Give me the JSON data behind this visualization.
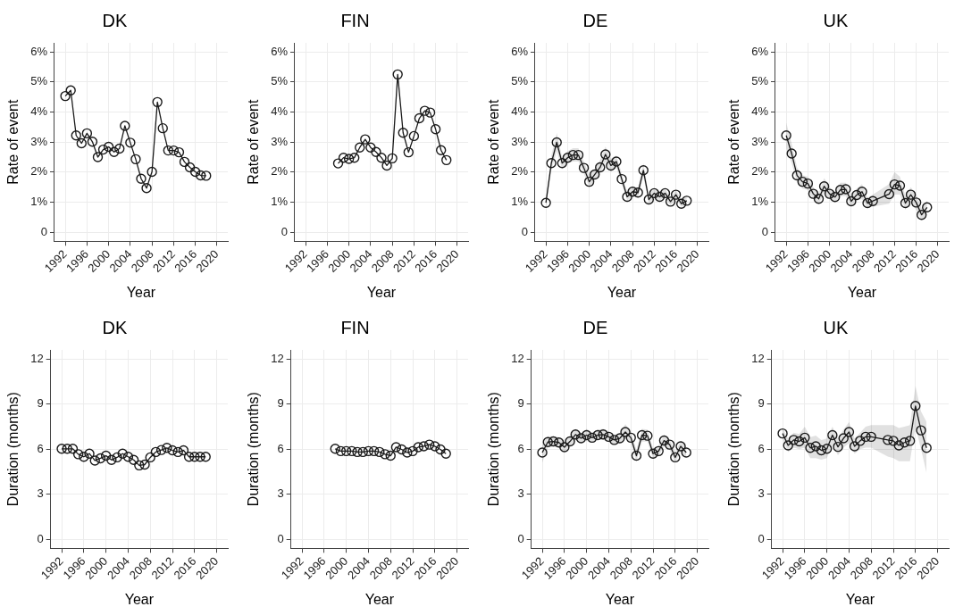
{
  "chart_data": [
    {
      "type": "line",
      "title": "DK",
      "xlabel": "Year",
      "ylabel": "Rate of event",
      "xlim": [
        1990,
        2022
      ],
      "xticks": [
        1992,
        1996,
        2000,
        2004,
        2008,
        2012,
        2016,
        2020
      ],
      "ylim": [
        -0.3,
        6.3
      ],
      "yticks": [
        0,
        {
          "value": 1,
          "label": "1%"
        },
        {
          "value": 2,
          "label": "2%"
        },
        {
          "value": 3,
          "label": "3%"
        },
        {
          "value": 4,
          "label": "4%"
        },
        {
          "value": 5,
          "label": "5%"
        },
        {
          "value": 6,
          "label": "6%"
        }
      ],
      "grid": true,
      "marker": "circle",
      "series": [
        {
          "color": "#1a1a1a",
          "x": [
            1992,
            1993,
            1994,
            1995,
            1996,
            1997,
            1998,
            1999,
            2000,
            2001,
            2002,
            2003,
            2004,
            2005,
            2006,
            2007,
            2008,
            2009,
            2010,
            2011,
            2012,
            2013,
            2014,
            2015,
            2016,
            2017,
            2018
          ],
          "values": [
            4.53,
            4.72,
            3.22,
            2.96,
            3.29,
            3.01,
            2.5,
            2.75,
            2.84,
            2.67,
            2.78,
            3.54,
            2.98,
            2.43,
            1.78,
            1.47,
            2.01,
            4.33,
            3.46,
            2.72,
            2.72,
            2.66,
            2.34,
            2.16,
            2.01,
            1.89,
            1.88
          ]
        }
      ]
    },
    {
      "type": "line",
      "title": "FIN",
      "xlabel": "Year",
      "ylabel": "Rate of event",
      "xlim": [
        1990,
        2022
      ],
      "xticks": [
        1992,
        1996,
        2000,
        2004,
        2008,
        2012,
        2016,
        2020
      ],
      "ylim": [
        -0.3,
        6.3
      ],
      "yticks": [
        0,
        {
          "value": 1,
          "label": "1%"
        },
        {
          "value": 2,
          "label": "2%"
        },
        {
          "value": 3,
          "label": "3%"
        },
        {
          "value": 4,
          "label": "4%"
        },
        {
          "value": 5,
          "label": "5%"
        },
        {
          "value": 6,
          "label": "6%"
        }
      ],
      "grid": true,
      "marker": "circle",
      "series": [
        {
          "color": "#1a1a1a",
          "x": [
            1998,
            1999,
            2000,
            2001,
            2002,
            2003,
            2004,
            2005,
            2006,
            2007,
            2008,
            2009,
            2010,
            2011,
            2012,
            2013,
            2014,
            2015,
            2016,
            2017,
            2018
          ],
          "values": [
            2.29,
            2.48,
            2.44,
            2.48,
            2.82,
            3.09,
            2.82,
            2.67,
            2.48,
            2.22,
            2.46,
            5.25,
            3.31,
            2.66,
            3.2,
            3.79,
            4.04,
            3.98,
            3.43,
            2.73,
            2.4
          ]
        }
      ]
    },
    {
      "type": "line",
      "title": "DE",
      "xlabel": "Year",
      "ylabel": "Rate of event",
      "xlim": [
        1990,
        2022
      ],
      "xticks": [
        1992,
        1996,
        2000,
        2004,
        2008,
        2012,
        2016,
        2020
      ],
      "ylim": [
        -0.3,
        6.3
      ],
      "yticks": [
        0,
        {
          "value": 1,
          "label": "1%"
        },
        {
          "value": 2,
          "label": "2%"
        },
        {
          "value": 3,
          "label": "3%"
        },
        {
          "value": 4,
          "label": "4%"
        },
        {
          "value": 5,
          "label": "5%"
        },
        {
          "value": 6,
          "label": "6%"
        }
      ],
      "grid": true,
      "marker": "circle",
      "series": [
        {
          "color": "#1a1a1a",
          "x": [
            1992,
            1993,
            1994,
            1995,
            1996,
            1997,
            1998,
            1999,
            2000,
            2001,
            2002,
            2003,
            2004,
            2005,
            2006,
            2007,
            2008,
            2009,
            2010,
            2011,
            2012,
            2013,
            2014,
            2015,
            2016,
            2017,
            2018
          ],
          "values": [
            0.98,
            2.3,
            2.99,
            2.3,
            2.48,
            2.57,
            2.57,
            2.14,
            1.68,
            1.92,
            2.16,
            2.59,
            2.22,
            2.35,
            1.77,
            1.18,
            1.35,
            1.32,
            2.06,
            1.09,
            1.3,
            1.18,
            1.3,
            1.02,
            1.25,
            0.95,
            1.05
          ],
          "lower": [
            0.85,
            2.05,
            2.7,
            2.1,
            2.3,
            2.35,
            2.35,
            1.95,
            1.5,
            1.75,
            1.95,
            2.35,
            2.0,
            2.15,
            1.6,
            1.05,
            1.2,
            1.15,
            1.85,
            0.95,
            1.15,
            1.05,
            1.15,
            0.9,
            1.1,
            0.85,
            0.9
          ],
          "upper": [
            1.12,
            2.55,
            3.3,
            2.5,
            2.7,
            2.8,
            2.8,
            2.35,
            1.9,
            2.1,
            2.4,
            2.85,
            2.45,
            2.55,
            1.95,
            1.35,
            1.5,
            1.5,
            2.3,
            1.25,
            1.45,
            1.35,
            1.45,
            1.15,
            1.4,
            1.1,
            1.2
          ]
        }
      ]
    },
    {
      "type": "line",
      "title": "UK",
      "xlabel": "Year",
      "ylabel": "Rate of event",
      "xlim": [
        1990,
        2022
      ],
      "xticks": [
        1992,
        1996,
        2000,
        2004,
        2008,
        2012,
        2016,
        2020
      ],
      "ylim": [
        -0.3,
        6.3
      ],
      "yticks": [
        0,
        {
          "value": 1,
          "label": "1%"
        },
        {
          "value": 2,
          "label": "2%"
        },
        {
          "value": 3,
          "label": "3%"
        },
        {
          "value": 4,
          "label": "4%"
        },
        {
          "value": 5,
          "label": "5%"
        },
        {
          "value": 6,
          "label": "6%"
        }
      ],
      "grid": true,
      "marker": "circle",
      "series": [
        {
          "color": "#1a1a1a",
          "x": [
            1992,
            1993,
            1994,
            1995,
            1996,
            1997,
            1998,
            1999,
            2000,
            2001,
            2002,
            2003,
            2004,
            2005,
            2006,
            2007,
            2008,
            2011,
            2012,
            2013,
            2014,
            2015,
            2016,
            2017,
            2018
          ],
          "values": [
            3.22,
            2.62,
            1.89,
            1.68,
            1.62,
            1.28,
            1.11,
            1.53,
            1.28,
            1.17,
            1.41,
            1.43,
            1.03,
            1.24,
            1.35,
            0.97,
            1.04,
            1.27,
            1.59,
            1.55,
            0.97,
            1.25,
            0.99,
            0.58,
            0.83
          ],
          "lower": [
            2.8,
            2.3,
            1.65,
            1.45,
            1.4,
            1.1,
            0.95,
            1.3,
            1.1,
            1.0,
            1.2,
            1.2,
            0.85,
            1.05,
            1.1,
            0.8,
            0.85,
            0.95,
            1.25,
            1.25,
            0.75,
            1.0,
            0.75,
            0.4,
            0.6
          ],
          "upper": [
            3.65,
            2.95,
            2.15,
            1.9,
            1.85,
            1.5,
            1.3,
            1.8,
            1.5,
            1.35,
            1.65,
            1.65,
            1.2,
            1.45,
            1.6,
            1.15,
            1.25,
            1.6,
            2.0,
            1.85,
            1.2,
            1.5,
            1.25,
            0.8,
            1.05
          ]
        }
      ]
    },
    {
      "type": "line",
      "title": "DK",
      "xlabel": "Year",
      "ylabel": "Duration (months)",
      "xlim": [
        1990,
        2022
      ],
      "xticks": [
        1992,
        1996,
        2000,
        2004,
        2008,
        2012,
        2016,
        2020
      ],
      "ylim": [
        -0.6,
        12.6
      ],
      "yticks": [
        0,
        3,
        6,
        9,
        12
      ],
      "grid": true,
      "marker": "circle",
      "series": [
        {
          "color": "#1a1a1a",
          "x": [
            1992,
            1993,
            1994,
            1995,
            1996,
            1997,
            1998,
            1999,
            2000,
            2001,
            2002,
            2003,
            2004,
            2005,
            2006,
            2007,
            2008,
            2009,
            2010,
            2011,
            2012,
            2013,
            2014,
            2015,
            2016,
            2017,
            2018
          ],
          "values": [
            6.02,
            6.02,
            6.02,
            5.66,
            5.49,
            5.7,
            5.24,
            5.39,
            5.56,
            5.28,
            5.45,
            5.7,
            5.49,
            5.28,
            4.92,
            4.97,
            5.45,
            5.81,
            5.94,
            6.08,
            5.92,
            5.81,
            5.92,
            5.49,
            5.49,
            5.49,
            5.49
          ]
        }
      ]
    },
    {
      "type": "line",
      "title": "FIN",
      "xlabel": "Year",
      "ylabel": "Duration (months)",
      "xlim": [
        1990,
        2022
      ],
      "xticks": [
        1992,
        1996,
        2000,
        2004,
        2008,
        2012,
        2016,
        2020
      ],
      "ylim": [
        -0.6,
        12.6
      ],
      "yticks": [
        0,
        3,
        6,
        9,
        12
      ],
      "grid": true,
      "marker": "circle",
      "series": [
        {
          "color": "#1a1a1a",
          "x": [
            1998,
            1999,
            2000,
            2001,
            2002,
            2003,
            2004,
            2005,
            2006,
            2007,
            2008,
            2009,
            2010,
            2011,
            2012,
            2013,
            2014,
            2015,
            2016,
            2017,
            2018
          ],
          "values": [
            6.02,
            5.87,
            5.87,
            5.87,
            5.81,
            5.81,
            5.87,
            5.87,
            5.81,
            5.66,
            5.56,
            6.13,
            5.98,
            5.77,
            5.87,
            6.13,
            6.19,
            6.3,
            6.19,
            5.98,
            5.7
          ]
        }
      ]
    },
    {
      "type": "line",
      "title": "DE",
      "xlabel": "Year",
      "ylabel": "Duration (months)",
      "xlim": [
        1990,
        2022
      ],
      "xticks": [
        1992,
        1996,
        2000,
        2004,
        2008,
        2012,
        2016,
        2020
      ],
      "ylim": [
        -0.6,
        12.6
      ],
      "yticks": [
        0,
        3,
        6,
        9,
        12
      ],
      "grid": true,
      "marker": "circle",
      "series": [
        {
          "color": "#1a1a1a",
          "x": [
            1992,
            1993,
            1994,
            1995,
            1996,
            1997,
            1998,
            1999,
            2000,
            2001,
            2002,
            2003,
            2004,
            2005,
            2006,
            2007,
            2008,
            2009,
            2010,
            2011,
            2012,
            2013,
            2014,
            2015,
            2016,
            2017,
            2018
          ],
          "values": [
            5.77,
            6.47,
            6.51,
            6.44,
            6.13,
            6.51,
            6.97,
            6.72,
            6.93,
            6.76,
            6.93,
            6.97,
            6.82,
            6.61,
            6.72,
            7.14,
            6.76,
            5.56,
            6.93,
            6.89,
            5.7,
            5.87,
            6.57,
            6.3,
            5.45,
            6.19,
            5.77
          ],
          "lower": [
            5.1,
            6.1,
            6.15,
            6.1,
            5.8,
            6.2,
            6.6,
            6.4,
            6.55,
            6.45,
            6.6,
            6.6,
            6.5,
            6.3,
            6.4,
            6.7,
            6.4,
            5.2,
            6.5,
            6.5,
            5.35,
            5.5,
            6.2,
            5.95,
            5.1,
            5.85,
            5.4
          ],
          "upper": [
            6.3,
            6.85,
            6.85,
            6.8,
            6.45,
            6.85,
            7.35,
            7.05,
            7.35,
            7.1,
            7.3,
            7.35,
            7.2,
            6.95,
            7.05,
            7.65,
            7.15,
            5.95,
            7.35,
            7.3,
            6.05,
            6.25,
            6.95,
            6.65,
            5.8,
            6.55,
            6.15
          ]
        }
      ]
    },
    {
      "type": "line",
      "title": "UK",
      "xlabel": "Year",
      "ylabel": "Duration (months)",
      "xlim": [
        1990,
        2022
      ],
      "xticks": [
        1992,
        1996,
        2000,
        2004,
        2008,
        2012,
        2016,
        2020
      ],
      "ylim": [
        -0.6,
        12.6
      ],
      "yticks": [
        0,
        3,
        6,
        9,
        12
      ],
      "grid": true,
      "marker": "circle",
      "series": [
        {
          "color": "#1a1a1a",
          "x": [
            1992,
            1993,
            1994,
            1995,
            1996,
            1997,
            1998,
            1999,
            2000,
            2001,
            2002,
            2003,
            2004,
            2005,
            2006,
            2007,
            2008,
            2011,
            2012,
            2013,
            2014,
            2015,
            2016,
            2017,
            2018
          ],
          "values": [
            7.04,
            6.25,
            6.61,
            6.51,
            6.76,
            6.08,
            6.19,
            5.92,
            6.02,
            6.93,
            6.15,
            6.72,
            7.14,
            6.19,
            6.55,
            6.82,
            6.82,
            6.61,
            6.55,
            6.25,
            6.44,
            6.55,
            8.87,
            7.25,
            6.08
          ],
          "lower": [
            6.7,
            5.8,
            6.1,
            6.0,
            6.1,
            5.4,
            5.4,
            5.3,
            5.4,
            6.3,
            5.6,
            6.1,
            6.4,
            5.7,
            6.0,
            6.1,
            6.1,
            5.5,
            5.4,
            5.2,
            5.2,
            5.2,
            7.5,
            6.0,
            4.4
          ],
          "upper": [
            7.4,
            6.7,
            7.1,
            7.0,
            7.5,
            6.8,
            6.9,
            6.6,
            6.7,
            7.5,
            6.7,
            7.3,
            7.8,
            6.7,
            7.1,
            7.5,
            7.6,
            7.6,
            7.6,
            7.4,
            7.5,
            7.6,
            10.2,
            8.5,
            7.8
          ]
        }
      ]
    }
  ]
}
